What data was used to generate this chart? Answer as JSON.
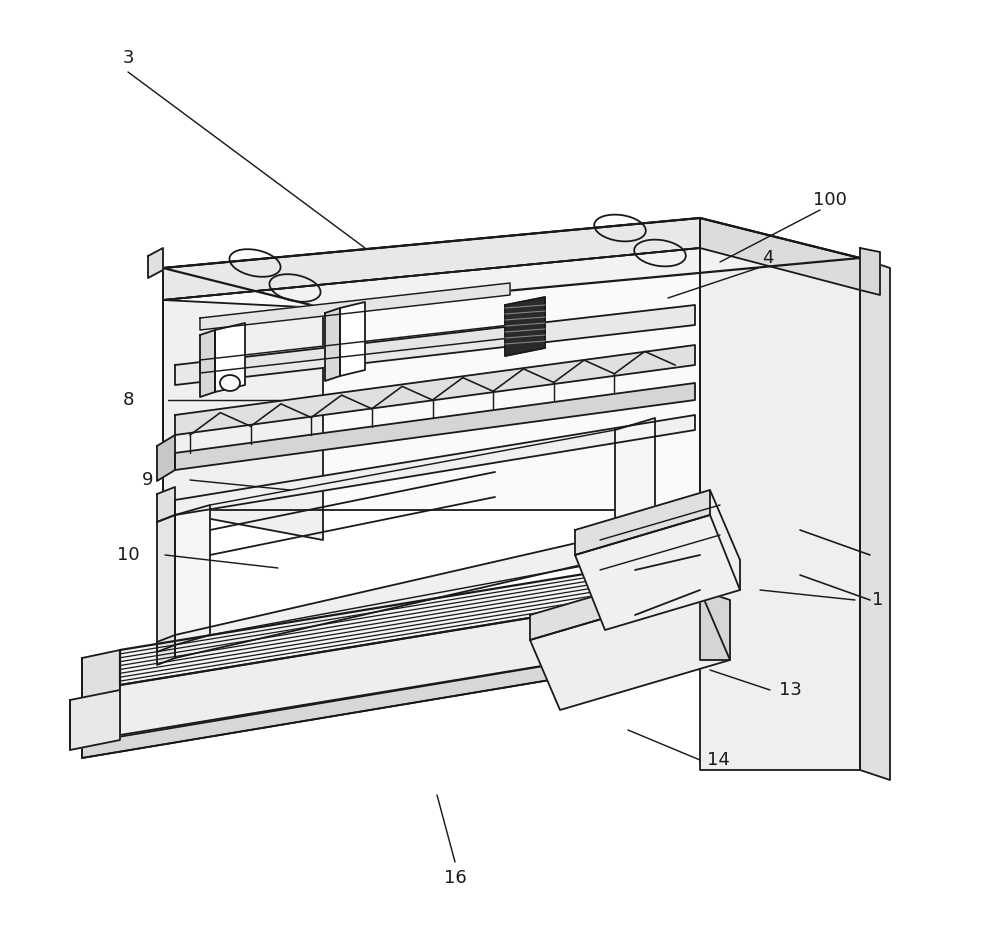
{
  "bg_color": "#ffffff",
  "line_color": "#1a1a1a",
  "lw": 1.3,
  "ann_fs": 13
}
